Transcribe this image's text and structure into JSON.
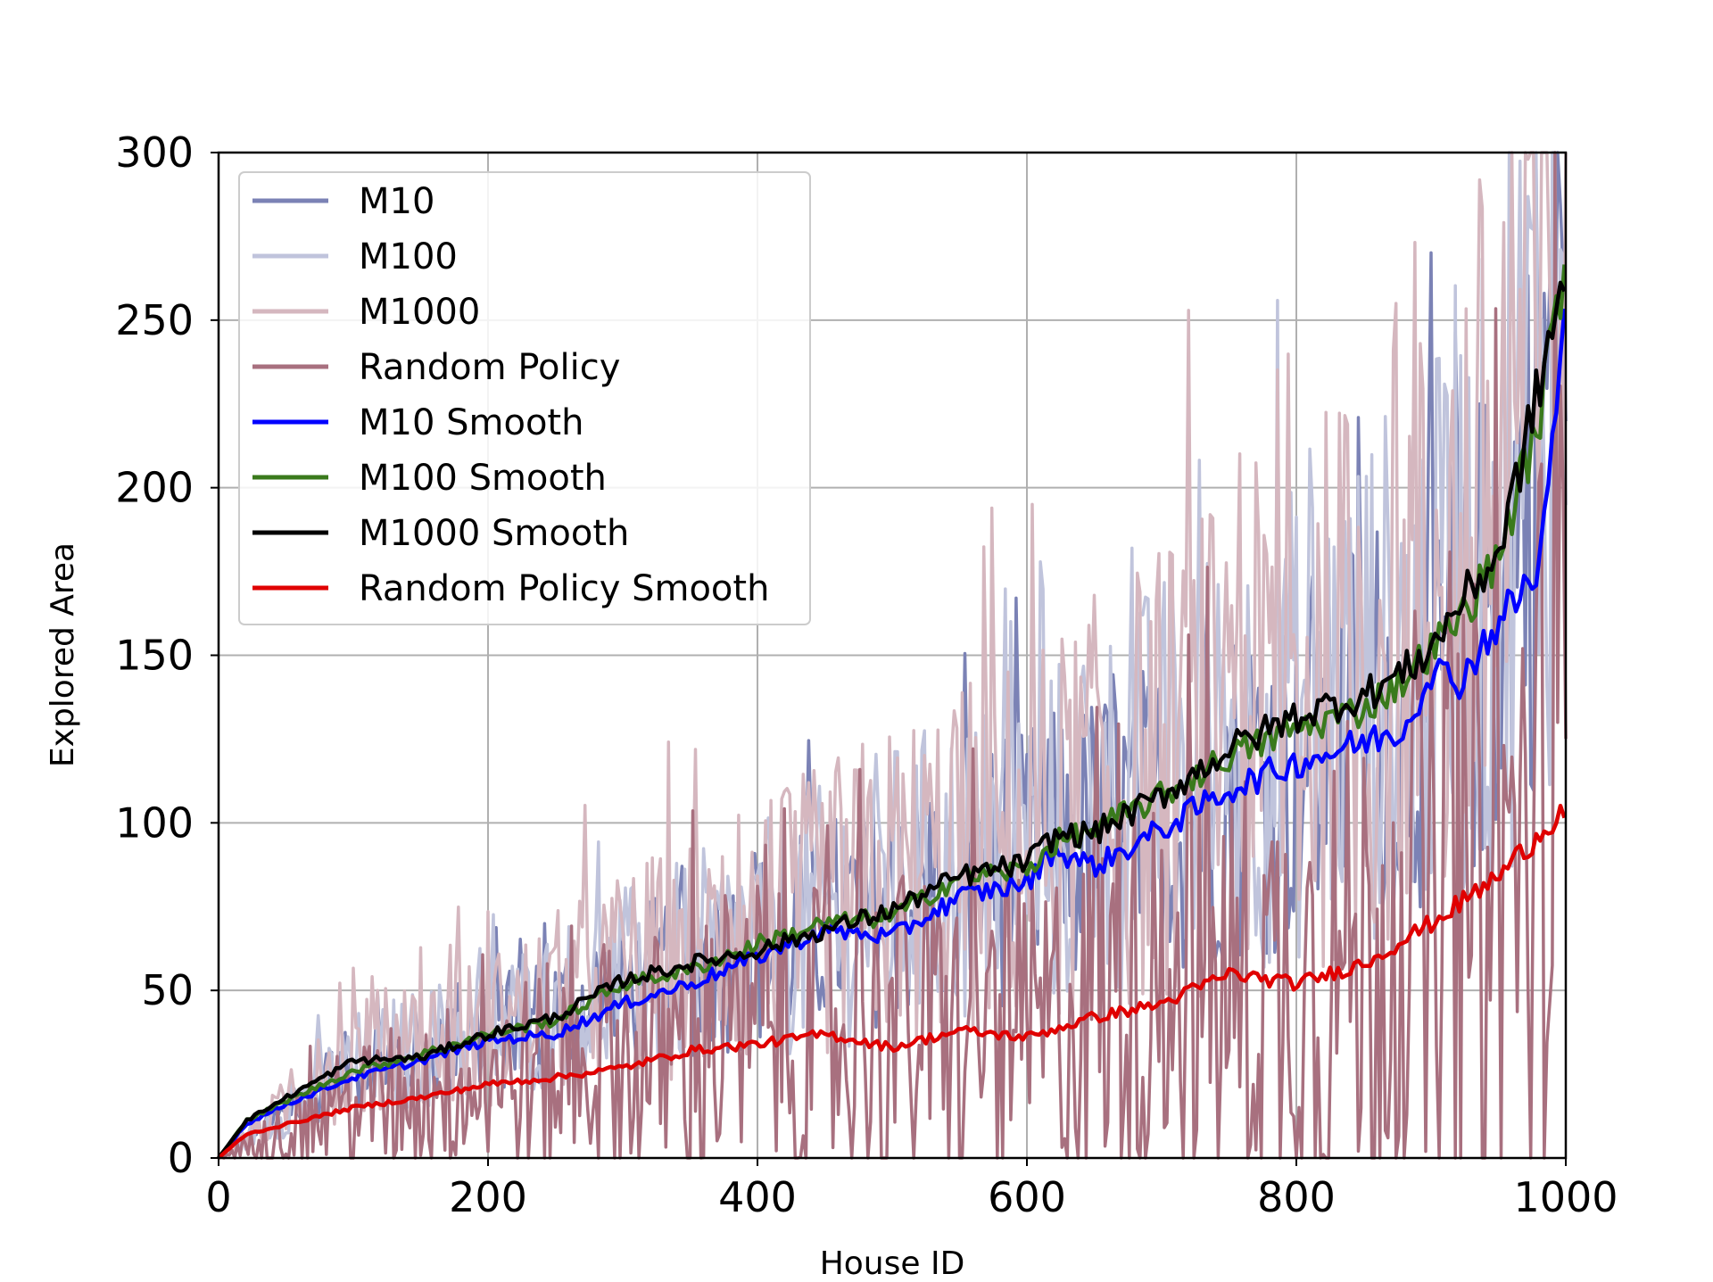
{
  "chart_data": {
    "type": "line",
    "title": "",
    "xlabel": "House ID",
    "ylabel": "Explored Area",
    "xlim": [
      0,
      1000
    ],
    "ylim": [
      0,
      300
    ],
    "xticks": [
      0,
      200,
      400,
      600,
      800,
      1000
    ],
    "yticks": [
      0,
      50,
      100,
      150,
      200,
      250,
      300
    ],
    "grid": true,
    "legend_position": "top-left",
    "series": [
      {
        "name": "M10",
        "color": "#7b82b5",
        "style": "noisy",
        "x": [
          0,
          100,
          200,
          300,
          400,
          500,
          600,
          700,
          800,
          900,
          950,
          1000
        ],
        "y": [
          0,
          27,
          36,
          50,
          62,
          76,
          88,
          102,
          118,
          142,
          162,
          250
        ]
      },
      {
        "name": "M100",
        "color": "#c0c4dc",
        "style": "noisy",
        "x": [
          0,
          100,
          200,
          300,
          400,
          500,
          600,
          700,
          800,
          900,
          950,
          1000
        ],
        "y": [
          0,
          28,
          38,
          52,
          64,
          80,
          92,
          112,
          130,
          152,
          180,
          265
        ]
      },
      {
        "name": "M1000",
        "color": "#d5b7bf",
        "style": "noisy",
        "x": [
          0,
          100,
          200,
          300,
          400,
          500,
          600,
          700,
          800,
          900,
          950,
          1000
        ],
        "y": [
          0,
          30,
          38,
          54,
          66,
          82,
          95,
          115,
          135,
          160,
          195,
          275
        ]
      },
      {
        "name": "Random Policy",
        "color": "#a8707f",
        "style": "noisy",
        "x": [
          0,
          100,
          200,
          300,
          400,
          500,
          600,
          700,
          800,
          900,
          950,
          1000
        ],
        "y": [
          0,
          15,
          22,
          28,
          33,
          36,
          36,
          48,
          52,
          65,
          78,
          105
        ]
      },
      {
        "name": "M10 Smooth",
        "color": "#0000ff",
        "style": "smooth",
        "x": [
          0,
          20,
          50,
          100,
          150,
          200,
          250,
          300,
          350,
          400,
          450,
          500,
          550,
          600,
          620,
          650,
          700,
          750,
          800,
          850,
          880,
          900,
          920,
          950,
          980,
          1000
        ],
        "y": [
          0,
          10,
          16,
          24,
          29,
          35,
          37,
          46,
          52,
          60,
          68,
          66,
          78,
          82,
          92,
          87,
          98,
          110,
          118,
          124,
          128,
          146,
          142,
          160,
          175,
          250
        ]
      },
      {
        "name": "M100 Smooth",
        "color": "#3a7a1c",
        "style": "smooth",
        "x": [
          0,
          20,
          50,
          100,
          150,
          200,
          250,
          300,
          350,
          400,
          450,
          500,
          550,
          600,
          620,
          650,
          700,
          750,
          800,
          850,
          880,
          900,
          920,
          950,
          980,
          1000
        ],
        "y": [
          0,
          11,
          17,
          26,
          31,
          37,
          41,
          52,
          56,
          64,
          70,
          72,
          84,
          86,
          94,
          98,
          108,
          120,
          128,
          134,
          143,
          152,
          160,
          180,
          220,
          270
        ]
      },
      {
        "name": "M1000 Smooth",
        "color": "#000000",
        "style": "smooth",
        "x": [
          0,
          20,
          50,
          100,
          150,
          200,
          250,
          300,
          350,
          400,
          450,
          500,
          550,
          600,
          620,
          650,
          700,
          750,
          800,
          850,
          880,
          900,
          920,
          950,
          980,
          1000
        ],
        "y": [
          0,
          11,
          18,
          29,
          30,
          37,
          42,
          53,
          58,
          62,
          68,
          74,
          84,
          88,
          96,
          97,
          108,
          122,
          132,
          138,
          145,
          152,
          165,
          180,
          230,
          265
        ]
      },
      {
        "name": "Random Policy Smooth",
        "color": "#e00000",
        "style": "smooth",
        "x": [
          0,
          20,
          50,
          100,
          150,
          200,
          250,
          300,
          350,
          400,
          450,
          500,
          550,
          600,
          650,
          700,
          750,
          800,
          850,
          900,
          950,
          1000
        ],
        "y": [
          0,
          7,
          10,
          15,
          18,
          22,
          24,
          27,
          32,
          34,
          37,
          33,
          38,
          36,
          42,
          46,
          55,
          52,
          58,
          70,
          84,
          105
        ]
      }
    ]
  }
}
